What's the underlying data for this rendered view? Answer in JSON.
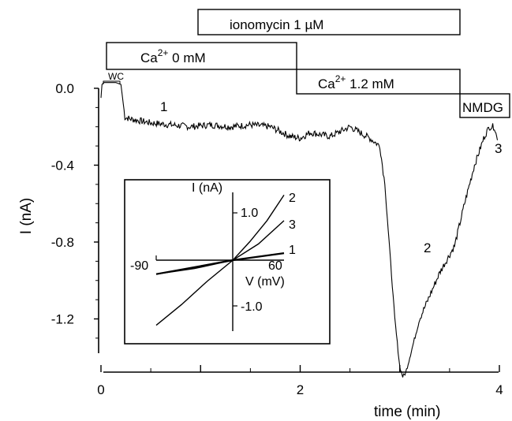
{
  "chart_data": {
    "type": "line",
    "xlabel": "time (min)",
    "ylabel": "I (nA)",
    "xlim": [
      0,
      4
    ],
    "ylim": [
      -1.5,
      0.1
    ],
    "x_ticks": [
      0,
      2,
      4
    ],
    "x_tick_labels": [
      "0",
      "2",
      "4"
    ],
    "y_ticks": [
      0.0,
      -0.4,
      -0.8,
      -1.2
    ],
    "y_tick_labels": [
      "0.0",
      "-0.4",
      "-0.8",
      "-1.2"
    ],
    "grid": false,
    "series": [
      {
        "x": [
          0.0,
          0.01,
          0.03,
          0.15,
          0.2,
          0.24,
          0.3,
          0.5,
          0.7,
          0.9,
          1.1,
          1.3,
          1.5,
          1.7,
          1.9,
          2.0,
          2.1,
          2.3,
          2.5,
          2.7,
          2.8,
          2.85,
          2.9,
          2.95,
          3.0,
          3.03,
          3.06,
          3.1,
          3.2,
          3.4,
          3.55,
          3.65,
          3.75,
          3.85,
          3.9,
          3.95,
          3.98
        ],
        "y": [
          -0.05,
          0.02,
          0.03,
          0.03,
          0.02,
          -0.15,
          -0.16,
          -0.18,
          -0.19,
          -0.2,
          -0.19,
          -0.2,
          -0.19,
          -0.2,
          -0.25,
          -0.26,
          -0.23,
          -0.25,
          -0.2,
          -0.26,
          -0.3,
          -0.5,
          -0.85,
          -1.2,
          -1.45,
          -1.5,
          -1.48,
          -1.4,
          -1.2,
          -0.96,
          -0.82,
          -0.6,
          -0.4,
          -0.25,
          -0.2,
          -0.2,
          -0.27
        ]
      }
    ],
    "annotations": {
      "wc": "WC",
      "point_labels": [
        {
          "text": "1",
          "x": 0.62,
          "y": -0.12
        },
        {
          "text": "2",
          "x": 3.27,
          "y": -0.9
        },
        {
          "text": "3",
          "x": 4.0,
          "y": -0.32
        }
      ]
    },
    "bars": [
      {
        "label_main": "ionomycin 1 ",
        "label_unit": "µM",
        "start": 0.97,
        "end": 3.6
      },
      {
        "label_main": "Ca",
        "label_sup": "2+",
        "label_rest": " 0 mM",
        "start": 0.05,
        "end": 1.95
      },
      {
        "label_main": "Ca",
        "label_sup": "2+",
        "label_rest": " 1.2 mM",
        "start": 1.95,
        "end": 3.6
      },
      {
        "label_main": "NMDG",
        "start": 3.6,
        "end": 4.13
      }
    ],
    "inset": {
      "type": "line",
      "xlabel": "V (mV)",
      "ylabel": "I (nA)",
      "xlim": [
        -90,
        60
      ],
      "ylim": [
        -1.5,
        1.5
      ],
      "x_tick_labels": [
        {
          "label": "-90",
          "v": -90
        },
        {
          "label": "60",
          "v": 60
        }
      ],
      "y_tick_labels": [
        {
          "label": "1.0",
          "v": 1.0
        },
        {
          "label": "-1.0",
          "v": -1.0
        }
      ],
      "series": [
        {
          "name": "1",
          "x": [
            -90,
            0,
            60
          ],
          "y": [
            -0.3,
            0.0,
            0.15
          ]
        },
        {
          "name": "2",
          "x": [
            -90,
            -60,
            -30,
            0,
            20,
            40,
            60
          ],
          "y": [
            -1.4,
            -0.95,
            -0.45,
            0.0,
            0.4,
            0.85,
            1.4
          ]
        },
        {
          "name": "3",
          "x": [
            -90,
            -45,
            0,
            30,
            60
          ],
          "y": [
            -0.3,
            -0.18,
            0.0,
            0.35,
            0.85
          ]
        }
      ]
    }
  }
}
